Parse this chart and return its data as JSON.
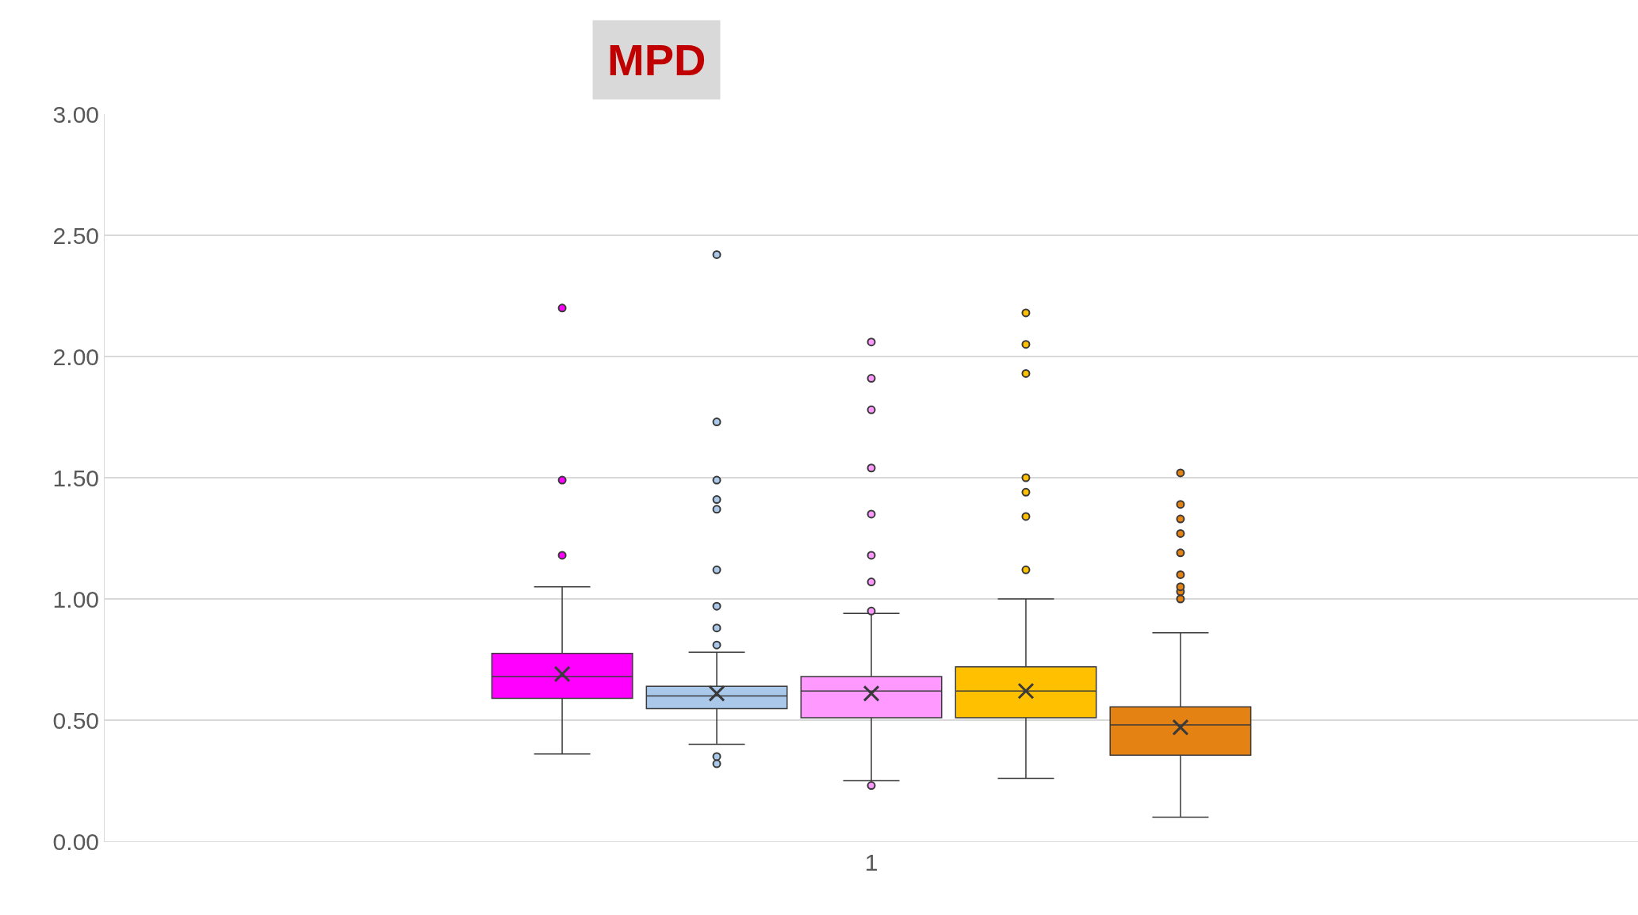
{
  "chart_data": {
    "type": "box",
    "title": "MPD",
    "categories": [
      "1"
    ],
    "series": [
      {
        "color": "#ff00ff",
        "boxes": [
          {
            "low": 0.36,
            "q1": 0.59,
            "median": 0.68,
            "q3": 0.775,
            "high": 1.05,
            "mean": 0.69,
            "outliers": [
              1.18,
              1.49,
              2.2
            ]
          }
        ]
      },
      {
        "color": "#a9c8ea",
        "boxes": [
          {
            "low": 0.4,
            "q1": 0.547,
            "median": 0.6,
            "q3": 0.64,
            "high": 0.78,
            "mean": 0.61,
            "outliers": [
              0.32,
              0.35,
              0.81,
              0.88,
              0.97,
              1.12,
              1.37,
              1.41,
              1.49,
              1.73,
              2.42
            ]
          }
        ]
      },
      {
        "color": "#ff99ff",
        "boxes": [
          {
            "low": 0.25,
            "q1": 0.51,
            "median": 0.62,
            "q3": 0.68,
            "high": 0.94,
            "mean": 0.61,
            "outliers": [
              0.23,
              0.95,
              1.07,
              1.18,
              1.35,
              1.54,
              1.78,
              1.91,
              2.06
            ]
          }
        ]
      },
      {
        "color": "#ffc000",
        "boxes": [
          {
            "low": 0.26,
            "q1": 0.51,
            "median": 0.62,
            "q3": 0.72,
            "high": 1.0,
            "mean": 0.62,
            "outliers": [
              1.12,
              1.34,
              1.44,
              1.5,
              1.93,
              2.05,
              2.18
            ]
          }
        ]
      },
      {
        "color": "#e58214",
        "boxes": [
          {
            "low": 0.1,
            "q1": 0.355,
            "median": 0.48,
            "q3": 0.555,
            "high": 0.86,
            "mean": 0.47,
            "outliers": [
              1.0,
              1.03,
              1.05,
              1.1,
              1.19,
              1.27,
              1.33,
              1.39,
              1.52
            ]
          }
        ]
      }
    ],
    "ylim": [
      0,
      3
    ],
    "yticks": [
      {
        "value": 0,
        "label": "0.00"
      },
      {
        "value": 0.5,
        "label": "0.50"
      },
      {
        "value": 1,
        "label": "1.00"
      },
      {
        "value": 1.5,
        "label": "1.50"
      },
      {
        "value": 2,
        "label": "2.00"
      },
      {
        "value": 2.5,
        "label": "2.50"
      },
      {
        "value": 3,
        "label": "3.00"
      }
    ],
    "grid": "y",
    "marker": "circle"
  }
}
